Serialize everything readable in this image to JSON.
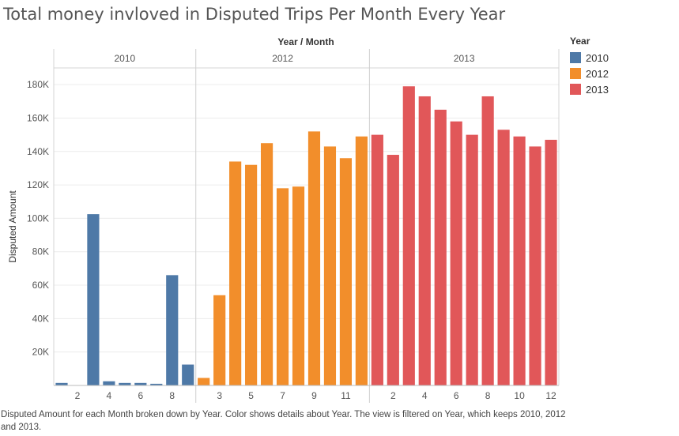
{
  "chart_data": {
    "type": "bar",
    "title": "Total money invloved in Disputed Trips Per Month Every Year",
    "column_header": "Year / Month",
    "ylabel": "Disputed Amount",
    "ylim": [
      0,
      190000
    ],
    "yticks": [
      20000,
      40000,
      60000,
      80000,
      100000,
      120000,
      140000,
      160000,
      180000
    ],
    "ytick_labels": [
      "20K",
      "40K",
      "60K",
      "80K",
      "100K",
      "120K",
      "140K",
      "160K",
      "180K"
    ],
    "grid": true,
    "legend_position": "right",
    "legend_title": "Year",
    "panels": [
      {
        "year": "2010",
        "color": "#4e79a7",
        "months": [
          1,
          2,
          3,
          4,
          5,
          6,
          7,
          8,
          9
        ],
        "month_labels": [
          "",
          "2",
          "",
          "4",
          "",
          "6",
          "",
          "8",
          ""
        ],
        "values": [
          1500,
          0,
          102500,
          2500,
          1500,
          1500,
          1000,
          66000,
          12500
        ]
      },
      {
        "year": "2012",
        "color": "#f28e2b",
        "months": [
          2,
          3,
          4,
          5,
          6,
          7,
          8,
          9,
          10,
          11,
          12
        ],
        "month_labels": [
          "",
          "3",
          "",
          "5",
          "",
          "7",
          "",
          "9",
          "",
          "11",
          ""
        ],
        "values": [
          4500,
          54000,
          134000,
          132000,
          145000,
          118000,
          119000,
          152000,
          143000,
          136000,
          149000
        ]
      },
      {
        "year": "2013",
        "color": "#e15759",
        "months": [
          1,
          2,
          3,
          4,
          5,
          6,
          7,
          8,
          9,
          10,
          11,
          12
        ],
        "month_labels": [
          "",
          "2",
          "",
          "4",
          "",
          "6",
          "",
          "8",
          "",
          "10",
          "",
          "12"
        ],
        "values": [
          150000,
          138000,
          179000,
          173000,
          165000,
          158000,
          150000,
          173000,
          153000,
          149000,
          143000,
          147000
        ]
      }
    ]
  },
  "legend": {
    "title": "Year",
    "items": [
      {
        "label": "2010",
        "color": "#4e79a7"
      },
      {
        "label": "2012",
        "color": "#f28e2b"
      },
      {
        "label": "2013",
        "color": "#e15759"
      }
    ]
  },
  "caption": "Disputed Amount for each Month broken down by Year.  Color shows details about Year. The view is filtered on Year, which keeps 2010, 2012 and 2013."
}
